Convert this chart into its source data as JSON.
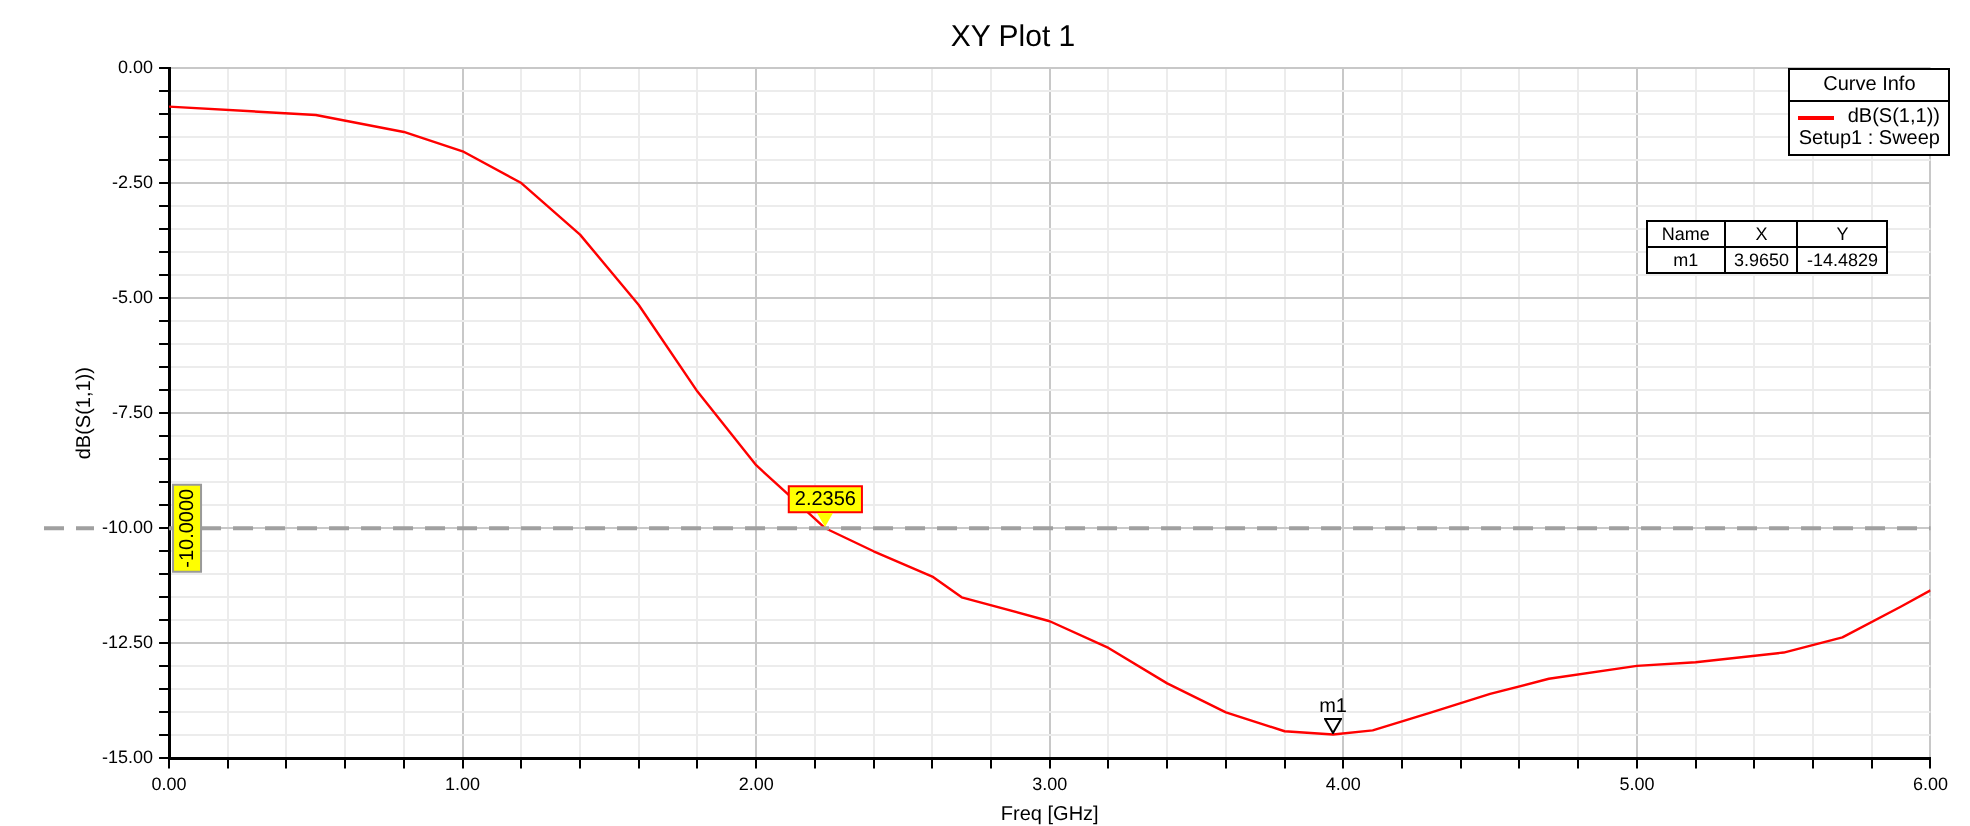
{
  "chart_data": {
    "type": "line",
    "title": "XY Plot 1",
    "xlabel": "Freq [GHz]",
    "ylabel": "dB(S(1,1))",
    "legend_title": "Curve Info",
    "legend": "top right",
    "grid": true,
    "xlim": [
      0,
      6
    ],
    "ylim": [
      -15,
      0
    ],
    "xticks": [
      {
        "value": 0,
        "label": "0.00"
      },
      {
        "value": 0.2,
        "label": null
      },
      {
        "value": 0.4,
        "label": null
      },
      {
        "value": 0.6,
        "label": null
      },
      {
        "value": 0.8,
        "label": null
      },
      {
        "value": 1,
        "label": "1.00"
      },
      {
        "value": 1.2,
        "label": null
      },
      {
        "value": 1.4,
        "label": null
      },
      {
        "value": 1.6,
        "label": null
      },
      {
        "value": 1.8,
        "label": null
      },
      {
        "value": 2,
        "label": "2.00"
      },
      {
        "value": 2.2,
        "label": null
      },
      {
        "value": 2.4,
        "label": null
      },
      {
        "value": 2.6,
        "label": null
      },
      {
        "value": 2.8,
        "label": null
      },
      {
        "value": 3,
        "label": "3.00"
      },
      {
        "value": 3.2,
        "label": null
      },
      {
        "value": 3.4,
        "label": null
      },
      {
        "value": 3.6,
        "label": null
      },
      {
        "value": 3.8,
        "label": null
      },
      {
        "value": 4,
        "label": "4.00"
      },
      {
        "value": 4.2,
        "label": null
      },
      {
        "value": 4.4,
        "label": null
      },
      {
        "value": 4.6,
        "label": null
      },
      {
        "value": 4.8,
        "label": null
      },
      {
        "value": 5,
        "label": "5.00"
      },
      {
        "value": 5.2,
        "label": null
      },
      {
        "value": 5.4,
        "label": null
      },
      {
        "value": 5.6,
        "label": null
      },
      {
        "value": 5.8,
        "label": null
      },
      {
        "value": 6,
        "label": "6.00"
      }
    ],
    "yticks": [
      {
        "value": 0,
        "label": "0.00"
      },
      {
        "value": -0.5,
        "label": null
      },
      {
        "value": -1,
        "label": null
      },
      {
        "value": -1.5,
        "label": null
      },
      {
        "value": -2,
        "label": null
      },
      {
        "value": -2.5,
        "label": "-2.50"
      },
      {
        "value": -3,
        "label": null
      },
      {
        "value": -3.5,
        "label": null
      },
      {
        "value": -4,
        "label": null
      },
      {
        "value": -4.5,
        "label": null
      },
      {
        "value": -5,
        "label": "-5.00"
      },
      {
        "value": -5.5,
        "label": null
      },
      {
        "value": -6,
        "label": null
      },
      {
        "value": -6.5,
        "label": null
      },
      {
        "value": -7,
        "label": null
      },
      {
        "value": -7.5,
        "label": "-7.50"
      },
      {
        "value": -8,
        "label": null
      },
      {
        "value": -8.5,
        "label": null
      },
      {
        "value": -9,
        "label": null
      },
      {
        "value": -9.5,
        "label": null
      },
      {
        "value": -10,
        "label": "-10.00"
      },
      {
        "value": -10.5,
        "label": null
      },
      {
        "value": -11,
        "label": null
      },
      {
        "value": -11.5,
        "label": null
      },
      {
        "value": -12,
        "label": null
      },
      {
        "value": -12.5,
        "label": "-12.50"
      },
      {
        "value": -13,
        "label": null
      },
      {
        "value": -13.5,
        "label": null
      },
      {
        "value": -14,
        "label": null
      },
      {
        "value": -14.5,
        "label": null
      },
      {
        "value": -15,
        "label": "-15.00"
      }
    ],
    "series": [
      {
        "name": "dB(S(1,1))",
        "color": "#ff0000",
        "x": [
          0,
          0.5,
          0.8,
          1.0,
          1.2,
          1.4,
          1.6,
          1.8,
          2.0,
          2.2356,
          2.4,
          2.6,
          2.7,
          3.0,
          3.2,
          3.4,
          3.6,
          3.8,
          3.965,
          4.1,
          4.3,
          4.5,
          4.7,
          5.0,
          5.2,
          5.5,
          5.7,
          5.9,
          6.0
        ],
        "values": [
          -0.84,
          -1.02,
          -1.39,
          -1.81,
          -2.5,
          -3.62,
          -5.15,
          -7.03,
          -8.63,
          -10.0,
          -10.5,
          -11.05,
          -11.5,
          -12.02,
          -12.6,
          -13.37,
          -14.0,
          -14.41,
          -14.48,
          -14.39,
          -14.0,
          -13.6,
          -13.27,
          -12.99,
          -12.91,
          -12.7,
          -12.37,
          -11.7,
          -11.35
        ]
      }
    ],
    "ref_lines": [
      {
        "axis": "y",
        "value": -10,
        "label": "-10.0000",
        "color": "#a0a0a0",
        "line_style": "dashed"
      }
    ],
    "annotations": [
      "Setup1 : Sweep",
      "Name",
      "X",
      "Y",
      "m1",
      "3.9650",
      "-14.4829",
      {
        "text": "2.2356",
        "x": 2.2356,
        "y": -10
      },
      {
        "text": "m1",
        "x": 3.965,
        "y": -14.4829
      }
    ]
  }
}
